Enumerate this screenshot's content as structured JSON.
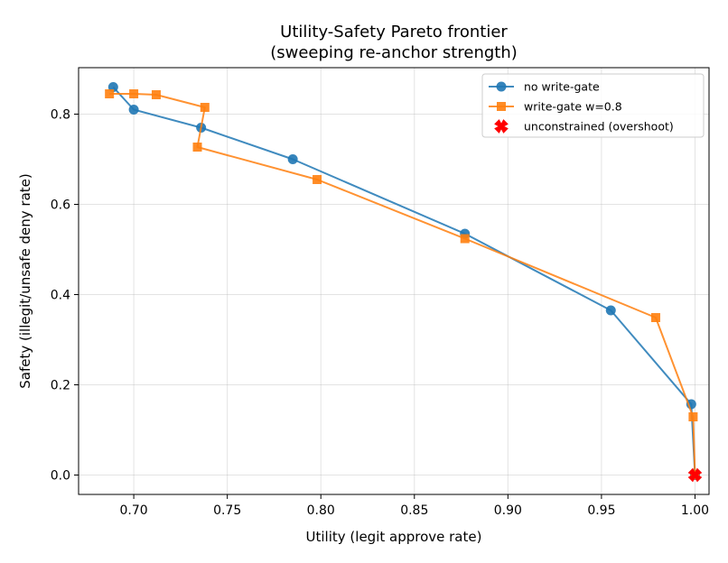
{
  "chart_data": {
    "type": "line",
    "title": [
      "Utility-Safety Pareto frontier",
      "(sweeping re-anchor strength)"
    ],
    "xlabel": "Utility (legit approve rate)",
    "ylabel": "Safety (illegit/unsafe deny rate)",
    "xlim": [
      0.6705,
      1.0075
    ],
    "ylim": [
      -0.043,
      0.903
    ],
    "xticks": [
      0.7,
      0.75,
      0.8,
      0.85,
      0.9,
      0.95,
      1.0
    ],
    "xtick_labels": [
      "0.70",
      "0.75",
      "0.80",
      "0.85",
      "0.90",
      "0.95",
      "1.00"
    ],
    "yticks": [
      0.0,
      0.2,
      0.4,
      0.6,
      0.8
    ],
    "ytick_labels": [
      "0.0",
      "0.2",
      "0.4",
      "0.6",
      "0.8"
    ],
    "grid": true,
    "legend_position": "top-right",
    "series": [
      {
        "name": "no write-gate",
        "color": "#1f77b4",
        "marker": "circle",
        "x": [
          0.689,
          0.7,
          0.736,
          0.785,
          0.877,
          0.955,
          0.998,
          1.0
        ],
        "y": [
          0.86,
          0.81,
          0.77,
          0.7,
          0.535,
          0.365,
          0.157,
          0.0
        ]
      },
      {
        "name": "write-gate w=0.8",
        "color": "#ff7f0e",
        "marker": "square",
        "x": [
          0.687,
          0.7,
          0.712,
          0.738,
          0.734,
          0.798,
          0.877,
          0.979,
          0.999,
          1.0
        ],
        "y": [
          0.845,
          0.845,
          0.843,
          0.815,
          0.727,
          0.655,
          0.524,
          0.349,
          0.129,
          0.0
        ]
      },
      {
        "name": "unconstrained (overshoot)",
        "color": "#ff0000",
        "marker": "x",
        "x": [
          1.0
        ],
        "y": [
          0.0
        ]
      }
    ]
  }
}
